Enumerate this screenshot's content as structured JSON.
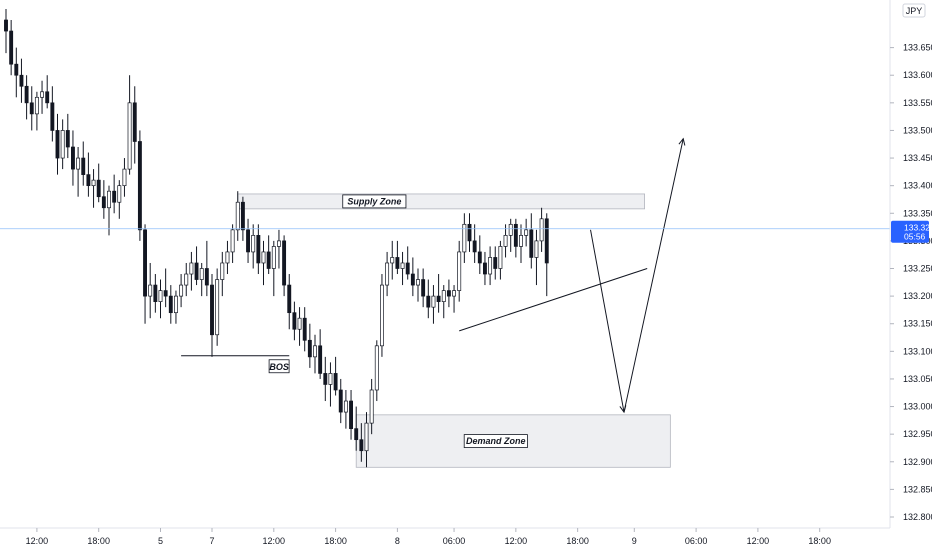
{
  "chart_data": {
    "type": "candlestick",
    "currency_label": "JPY",
    "y_ticks": [
      132.8,
      132.85,
      132.9,
      132.95,
      133.0,
      133.05,
      133.1,
      133.15,
      133.2,
      133.25,
      133.3,
      133.35,
      133.4,
      133.45,
      133.5,
      133.55,
      133.6,
      133.65,
      133.7
    ],
    "y_tick_labels": [
      "132.800",
      "132.850",
      "132.900",
      "132.950",
      "133.000",
      "133.050",
      "133.100",
      "133.150",
      "133.200",
      "133.250",
      "133.300",
      "133.350",
      "133.400",
      "133.450",
      "133.500",
      "133.550",
      "133.600",
      "133.650",
      "133.700"
    ],
    "ylim": [
      132.79,
      133.72
    ],
    "x_labels": [
      {
        "bar": 6,
        "label": "12:00"
      },
      {
        "bar": 18,
        "label": "18:00"
      },
      {
        "bar": 30,
        "label": "5"
      },
      {
        "bar": 40,
        "label": "7"
      },
      {
        "bar": 52,
        "label": "12:00"
      },
      {
        "bar": 64,
        "label": "18:00"
      },
      {
        "bar": 76,
        "label": "8"
      },
      {
        "bar": 87,
        "label": "06:00"
      },
      {
        "bar": 99,
        "label": "12:00"
      },
      {
        "bar": 111,
        "label": "18:00"
      },
      {
        "bar": 122,
        "label": "9"
      },
      {
        "bar": 134,
        "label": "06:00"
      },
      {
        "bar": 146,
        "label": "12:00"
      },
      {
        "bar": 158,
        "label": "18:00"
      }
    ],
    "current_price": {
      "value": 133.322,
      "label": "133.322",
      "countdown": "05:56",
      "color": "#2962ff"
    },
    "colors": {
      "up": "#131722",
      "down": "#131722",
      "up_fill": "#ffffff",
      "down_fill": "#131722",
      "zone_fill": "#eeeff2",
      "zone_stroke": "#b2b5be",
      "line": "#131722"
    },
    "candles": [
      [
        133.7,
        133.72,
        133.64,
        133.68
      ],
      [
        133.68,
        133.7,
        133.6,
        133.62
      ],
      [
        133.62,
        133.65,
        133.56,
        133.6
      ],
      [
        133.6,
        133.63,
        133.55,
        133.58
      ],
      [
        133.58,
        133.6,
        133.52,
        133.55
      ],
      [
        133.55,
        133.58,
        133.5,
        133.53
      ],
      [
        133.53,
        133.57,
        133.5,
        133.56
      ],
      [
        133.56,
        133.59,
        133.53,
        133.57
      ],
      [
        133.57,
        133.6,
        133.54,
        133.55
      ],
      [
        133.55,
        133.58,
        133.48,
        133.5
      ],
      [
        133.5,
        133.53,
        133.42,
        133.45
      ],
      [
        133.45,
        133.52,
        133.43,
        133.5
      ],
      [
        133.5,
        133.53,
        133.45,
        133.47
      ],
      [
        133.47,
        133.5,
        133.4,
        133.43
      ],
      [
        133.43,
        133.47,
        133.38,
        133.45
      ],
      [
        133.45,
        133.48,
        133.4,
        133.42
      ],
      [
        133.42,
        133.46,
        133.38,
        133.4
      ],
      [
        133.4,
        133.43,
        133.36,
        133.41
      ],
      [
        133.41,
        133.44,
        133.37,
        133.38
      ],
      [
        133.38,
        133.41,
        133.34,
        133.36
      ],
      [
        133.36,
        133.4,
        133.31,
        133.39
      ],
      [
        133.39,
        133.42,
        133.35,
        133.37
      ],
      [
        133.37,
        133.41,
        133.34,
        133.4
      ],
      [
        133.4,
        133.45,
        133.38,
        133.43
      ],
      [
        133.43,
        133.6,
        133.42,
        133.55
      ],
      [
        133.55,
        133.58,
        133.44,
        133.48
      ],
      [
        133.48,
        133.5,
        133.3,
        133.32
      ],
      [
        133.32,
        133.33,
        133.15,
        133.2
      ],
      [
        133.2,
        133.26,
        133.16,
        133.22
      ],
      [
        133.22,
        133.24,
        133.17,
        133.19
      ],
      [
        133.19,
        133.23,
        133.16,
        133.21
      ],
      [
        133.21,
        133.25,
        133.18,
        133.2
      ],
      [
        133.2,
        133.22,
        133.15,
        133.17
      ],
      [
        133.17,
        133.21,
        133.15,
        133.2
      ],
      [
        133.2,
        133.24,
        133.18,
        133.22
      ],
      [
        133.22,
        133.26,
        133.2,
        133.24
      ],
      [
        133.24,
        133.28,
        133.21,
        133.26
      ],
      [
        133.26,
        133.29,
        133.22,
        133.23
      ],
      [
        133.23,
        133.26,
        133.2,
        133.25
      ],
      [
        133.25,
        133.3,
        133.2,
        133.22
      ],
      [
        133.22,
        133.24,
        133.09,
        133.13
      ],
      [
        133.13,
        133.25,
        133.11,
        133.23
      ],
      [
        133.23,
        133.28,
        133.2,
        133.26
      ],
      [
        133.26,
        133.3,
        133.24,
        133.28
      ],
      [
        133.28,
        133.33,
        133.26,
        133.32
      ],
      [
        133.32,
        133.39,
        133.3,
        133.37
      ],
      [
        133.37,
        133.38,
        133.3,
        133.32
      ],
      [
        133.32,
        133.34,
        133.26,
        133.28
      ],
      [
        133.28,
        133.33,
        133.25,
        133.31
      ],
      [
        133.31,
        133.33,
        133.24,
        133.26
      ],
      [
        133.26,
        133.3,
        133.22,
        133.28
      ],
      [
        133.28,
        133.31,
        133.24,
        133.25
      ],
      [
        133.25,
        133.3,
        133.2,
        133.29
      ],
      [
        133.29,
        133.32,
        133.25,
        133.3
      ],
      [
        133.3,
        133.31,
        133.2,
        133.22
      ],
      [
        133.22,
        133.24,
        133.14,
        133.17
      ],
      [
        133.17,
        133.19,
        133.12,
        133.14
      ],
      [
        133.14,
        133.18,
        133.11,
        133.16
      ],
      [
        133.16,
        133.18,
        133.1,
        133.12
      ],
      [
        133.12,
        133.15,
        133.07,
        133.09
      ],
      [
        133.09,
        133.13,
        133.06,
        133.11
      ],
      [
        133.11,
        133.14,
        133.05,
        133.06
      ],
      [
        133.06,
        133.09,
        133.01,
        133.04
      ],
      [
        133.04,
        133.08,
        133.0,
        133.06
      ],
      [
        133.06,
        133.09,
        133.02,
        133.03
      ],
      [
        133.03,
        133.05,
        132.97,
        132.99
      ],
      [
        132.99,
        133.03,
        132.96,
        133.01
      ],
      [
        133.01,
        133.03,
        132.94,
        132.96
      ],
      [
        132.96,
        133.0,
        132.92,
        132.94
      ],
      [
        132.94,
        132.97,
        132.9,
        132.92
      ],
      [
        132.92,
        132.99,
        132.89,
        132.97
      ],
      [
        132.97,
        133.05,
        132.95,
        133.03
      ],
      [
        133.03,
        133.12,
        133.01,
        133.11
      ],
      [
        133.11,
        133.24,
        133.09,
        133.22
      ],
      [
        133.22,
        133.28,
        133.2,
        133.26
      ],
      [
        133.26,
        133.3,
        133.23,
        133.27
      ],
      [
        133.27,
        133.3,
        133.24,
        133.25
      ],
      [
        133.25,
        133.28,
        133.22,
        133.26
      ],
      [
        133.26,
        133.29,
        133.23,
        133.24
      ],
      [
        133.24,
        133.27,
        133.2,
        133.22
      ],
      [
        133.22,
        133.25,
        133.19,
        133.23
      ],
      [
        133.23,
        133.25,
        133.18,
        133.2
      ],
      [
        133.2,
        133.23,
        133.16,
        133.18
      ],
      [
        133.18,
        133.22,
        133.15,
        133.2
      ],
      [
        133.2,
        133.24,
        133.17,
        133.19
      ],
      [
        133.19,
        133.22,
        133.16,
        133.21
      ],
      [
        133.21,
        133.23,
        133.18,
        133.2
      ],
      [
        133.2,
        133.22,
        133.17,
        133.21
      ],
      [
        133.21,
        133.3,
        133.19,
        133.28
      ],
      [
        133.28,
        133.35,
        133.26,
        133.33
      ],
      [
        133.33,
        133.35,
        133.28,
        133.3
      ],
      [
        133.3,
        133.33,
        133.26,
        133.28
      ],
      [
        133.28,
        133.31,
        133.24,
        133.26
      ],
      [
        133.26,
        133.28,
        133.22,
        133.24
      ],
      [
        133.24,
        133.29,
        133.22,
        133.27
      ],
      [
        133.27,
        133.29,
        133.23,
        133.25
      ],
      [
        133.25,
        133.3,
        133.23,
        133.29
      ],
      [
        133.29,
        133.33,
        133.27,
        133.31
      ],
      [
        133.31,
        133.34,
        133.28,
        133.33
      ],
      [
        133.33,
        133.34,
        133.27,
        133.29
      ],
      [
        133.29,
        133.33,
        133.26,
        133.31
      ],
      [
        133.31,
        133.34,
        133.29,
        133.32
      ],
      [
        133.32,
        133.35,
        133.25,
        133.27
      ],
      [
        133.27,
        133.32,
        133.22,
        133.3
      ],
      [
        133.3,
        133.36,
        133.28,
        133.34
      ],
      [
        133.34,
        133.35,
        133.2,
        133.26
      ]
    ],
    "annotations": [
      {
        "type": "zone",
        "label": "Supply Zone",
        "x0": 45,
        "x1": 124,
        "y0": 133.358,
        "y1": 133.385
      },
      {
        "type": "zone",
        "label": "Demand Zone",
        "x0": 68,
        "x1": 129,
        "y0": 132.89,
        "y1": 132.985
      },
      {
        "type": "hline",
        "label": "BOS",
        "x0": 34,
        "x1": 55,
        "y": 133.092
      },
      {
        "type": "trendline",
        "x0": 88,
        "y0": 133.137,
        "x1": 124.5,
        "y1": 133.25
      },
      {
        "type": "arrow-path",
        "points": [
          [
            113.5,
            133.32
          ],
          [
            120,
            132.99
          ],
          [
            131.5,
            133.485
          ]
        ]
      }
    ]
  }
}
